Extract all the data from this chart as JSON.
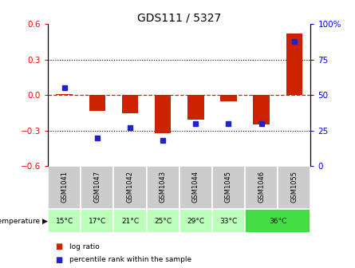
{
  "title": "GDS111 / 5327",
  "samples": [
    "GSM1041",
    "GSM1047",
    "GSM1042",
    "GSM1043",
    "GSM1044",
    "GSM1045",
    "GSM1046",
    "GSM1055"
  ],
  "log_ratios": [
    0.01,
    -0.13,
    -0.155,
    -0.32,
    -0.21,
    -0.05,
    -0.25,
    0.52
  ],
  "percentile_ranks": [
    55,
    20,
    27,
    18,
    30,
    30,
    30,
    88
  ],
  "ylim": [
    -0.6,
    0.6
  ],
  "y_left_ticks": [
    -0.6,
    -0.3,
    0.0,
    0.3,
    0.6
  ],
  "bar_color": "#cc2200",
  "dot_color": "#2222cc",
  "zero_line_color": "#cc2200",
  "sample_bg": "#cccccc",
  "temp_light": "#bbffbb",
  "temp_dark": "#44dd44",
  "temp_map": [
    [
      0,
      0,
      "15°C",
      "#bbffbb"
    ],
    [
      1,
      1,
      "17°C",
      "#bbffbb"
    ],
    [
      2,
      2,
      "21°C",
      "#bbffbb"
    ],
    [
      3,
      3,
      "25°C",
      "#bbffbb"
    ],
    [
      4,
      4,
      "29°C",
      "#bbffbb"
    ],
    [
      5,
      5,
      "33°C",
      "#bbffbb"
    ],
    [
      6,
      7,
      "36°C",
      "#44dd44"
    ]
  ]
}
